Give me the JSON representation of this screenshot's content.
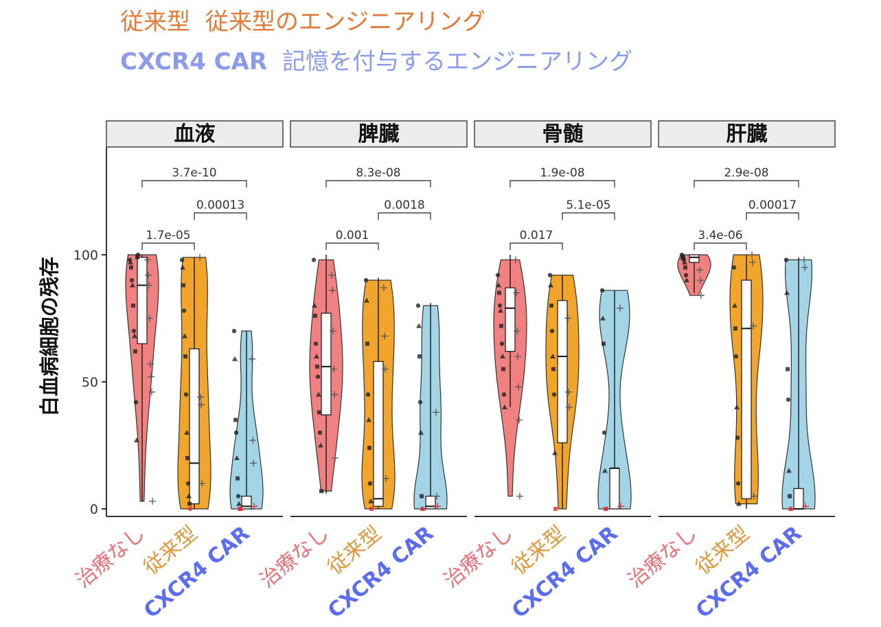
{
  "legend": {
    "conventional_label": "従来型",
    "conventional_desc": "従来型のエンジニアリング",
    "cxcr4_label": "CXCR4 CAR",
    "cxcr4_desc": "記憶を付与するエンジニアリング"
  },
  "colors": {
    "none": "#f07a7a",
    "conventional": "#f0a020",
    "cxcr4": "#9ed3e6",
    "label_none": "#e8707a",
    "label_conv": "#e0963c",
    "label_cxcr4": "#5c6cf0"
  },
  "chart_data": {
    "type": "violin-box",
    "ylabel": "白血病細胞の残存",
    "ylim": [
      0,
      100
    ],
    "yticks": [
      0,
      50,
      100
    ],
    "groups": [
      "治療なし",
      "従来型",
      "CXCR4 CAR"
    ],
    "panels": [
      {
        "title": "血液",
        "pvalues": [
          {
            "label": "3.7e-10",
            "from": 0,
            "to": 2
          },
          {
            "label": "0.00013",
            "from": 1,
            "to": 2
          },
          {
            "label": "1.7e-05",
            "from": 0,
            "to": 1
          }
        ],
        "box": [
          {
            "q1": 65,
            "median": 88,
            "q3": 99,
            "min": 3,
            "max": 100
          },
          {
            "q1": 2,
            "median": 18,
            "q3": 63,
            "min": 0,
            "max": 99
          },
          {
            "q1": 0,
            "median": 1,
            "q3": 5,
            "min": 0,
            "max": 70
          }
        ],
        "points": [
          [
            98,
            97,
            95,
            90,
            88,
            80,
            70,
            68,
            62,
            42,
            27,
            99,
            100
          ],
          [
            98,
            95,
            88,
            78,
            68,
            60,
            45,
            30,
            20,
            10,
            5,
            2,
            0
          ],
          [
            70,
            59,
            35,
            30,
            20,
            12,
            5,
            2,
            0,
            0,
            0
          ]
        ],
        "plus": [
          [
            98,
            92,
            88,
            75,
            57,
            52,
            46,
            3
          ],
          [
            99,
            44,
            41,
            10
          ],
          [
            59,
            27,
            18,
            1
          ]
        ]
      },
      {
        "title": "脾臓",
        "pvalues": [
          {
            "label": "8.3e-08",
            "from": 0,
            "to": 2
          },
          {
            "label": "0.0018",
            "from": 1,
            "to": 2
          },
          {
            "label": "0.001",
            "from": 0,
            "to": 1
          }
        ],
        "box": [
          {
            "q1": 37,
            "median": 56,
            "q3": 77,
            "min": 6,
            "max": 100
          },
          {
            "q1": 1,
            "median": 4,
            "q3": 58,
            "min": 0,
            "max": 91
          },
          {
            "q1": 0,
            "median": 1,
            "q3": 5,
            "min": 0,
            "max": 81
          }
        ],
        "points": [
          [
            98,
            80,
            76,
            65,
            60,
            56,
            52,
            45,
            38,
            30,
            25,
            7
          ],
          [
            90,
            82,
            65,
            45,
            35,
            24,
            10,
            3,
            0
          ],
          [
            80,
            72,
            60,
            42,
            30,
            5,
            0,
            0
          ]
        ],
        "plus": [
          [
            92,
            86,
            70,
            55,
            45,
            20
          ],
          [
            87,
            68,
            55,
            12
          ],
          [
            38,
            5,
            1
          ]
        ]
      },
      {
        "title": "骨髄",
        "pvalues": [
          {
            "label": "1.9e-08",
            "from": 0,
            "to": 2
          },
          {
            "label": "5.1e-05",
            "from": 1,
            "to": 2
          },
          {
            "label": "0.017",
            "from": 0,
            "to": 1
          }
        ],
        "box": [
          {
            "q1": 62,
            "median": 79,
            "q3": 87,
            "min": 40,
            "max": 100
          },
          {
            "q1": 26,
            "median": 60,
            "q3": 82,
            "min": 0,
            "max": 92
          },
          {
            "q1": 0,
            "median": 16,
            "q3": 16,
            "min": 0,
            "max": 86
          }
        ],
        "points": [
          [
            92,
            88,
            85,
            80,
            78,
            72,
            65,
            60,
            55,
            45,
            40
          ],
          [
            92,
            88,
            80,
            70,
            60,
            55,
            45,
            22,
            0
          ],
          [
            86,
            75,
            65,
            30,
            15,
            0,
            0
          ]
        ],
        "plus": [
          [
            98,
            85,
            70,
            60,
            48,
            35,
            5
          ],
          [
            75,
            46,
            40
          ],
          [
            79,
            1
          ]
        ]
      },
      {
        "title": "肝臓",
        "pvalues": [
          {
            "label": "2.9e-08",
            "from": 0,
            "to": 2
          },
          {
            "label": "0.00017",
            "from": 1,
            "to": 2
          },
          {
            "label": "3.4e-06",
            "from": 0,
            "to": 1
          }
        ],
        "box": [
          {
            "q1": 97,
            "median": 99,
            "q3": 100,
            "min": 85,
            "max": 100
          },
          {
            "q1": 4,
            "median": 71,
            "q3": 90,
            "min": 0,
            "max": 100
          },
          {
            "q1": 0,
            "median": 0,
            "q3": 8,
            "min": 0,
            "max": 99
          }
        ],
        "points": [
          [
            100,
            99,
            99,
            98,
            97,
            95,
            92,
            90
          ],
          [
            95,
            80,
            71,
            60,
            40,
            28,
            10,
            2
          ],
          [
            98,
            85,
            55,
            43,
            15,
            5,
            0,
            0
          ]
        ],
        "plus": [
          [
            94,
            90,
            84
          ],
          [
            100,
            97,
            72,
            5
          ],
          [
            98,
            95,
            1
          ]
        ]
      }
    ]
  }
}
